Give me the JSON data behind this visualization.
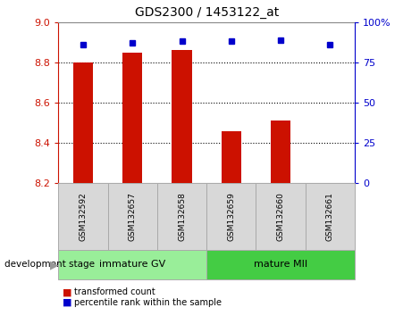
{
  "title": "GDS2300 / 1453122_at",
  "samples": [
    "GSM132592",
    "GSM132657",
    "GSM132658",
    "GSM132659",
    "GSM132660",
    "GSM132661"
  ],
  "bar_values": [
    8.8,
    8.85,
    8.86,
    8.46,
    8.51,
    8.2
  ],
  "bar_bottom": 8.2,
  "percentile_values": [
    86,
    87,
    88,
    88,
    89,
    86
  ],
  "ylim_left": [
    8.2,
    9.0
  ],
  "ylim_right": [
    0,
    100
  ],
  "yticks_left": [
    8.2,
    8.4,
    8.6,
    8.8,
    9.0
  ],
  "yticks_right": [
    0,
    25,
    50,
    75,
    100
  ],
  "bar_color": "#cc1100",
  "dot_color": "#0000cc",
  "grid_color": "#000000",
  "background_color": "#ffffff",
  "groups": [
    {
      "label": "immature GV",
      "indices": [
        0,
        1,
        2
      ],
      "color": "#99ee99"
    },
    {
      "label": "mature MII",
      "indices": [
        3,
        4,
        5
      ],
      "color": "#44cc44"
    }
  ],
  "group_label": "development stage",
  "legend_bar_label": "transformed count",
  "legend_dot_label": "percentile rank within the sample",
  "tick_label_color_left": "#cc1100",
  "tick_label_color_right": "#0000cc",
  "sample_box_color": "#d8d8d8",
  "sample_box_edgecolor": "#aaaaaa"
}
